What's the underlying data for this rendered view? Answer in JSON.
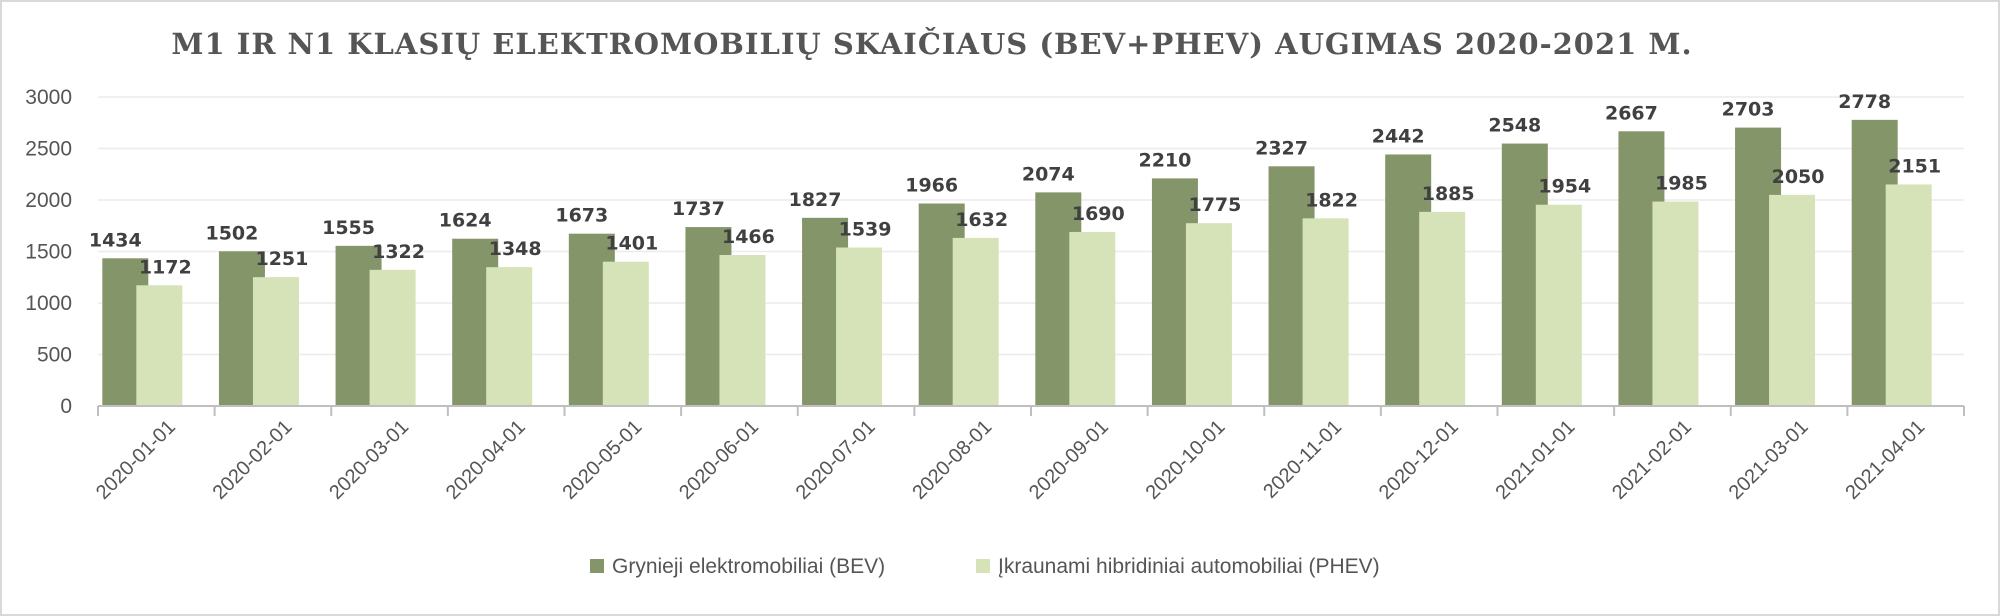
{
  "chart_data": {
    "type": "bar",
    "title": "M1 IR N1 KLASIŲ ELEKTROMOBILIŲ SKAIČIAUS (BEV+PHEV) AUGIMAS 2020-2021 M.",
    "xlabel": "",
    "ylabel": "",
    "ylim": [
      0,
      3000
    ],
    "yticks": [
      0,
      500,
      1000,
      1500,
      2000,
      2500,
      3000
    ],
    "grid": true,
    "legend": "bottom",
    "categories": [
      "2020-01-01",
      "2020-02-01",
      "2020-03-01",
      "2020-04-01",
      "2020-05-01",
      "2020-06-01",
      "2020-07-01",
      "2020-08-01",
      "2020-09-01",
      "2020-10-01",
      "2020-11-01",
      "2020-12-01",
      "2021-01-01",
      "2021-02-01",
      "2021-03-01",
      "2021-04-01"
    ],
    "series": [
      {
        "name": "Grynieji elektromobiliai (BEV)",
        "color": "#84956a",
        "values": [
          1434,
          1502,
          1555,
          1624,
          1673,
          1737,
          1827,
          1966,
          2074,
          2210,
          2327,
          2442,
          2548,
          2667,
          2703,
          2778
        ]
      },
      {
        "name": "Įkraunami hibridiniai automobiliai (PHEV)",
        "color": "#d6e2b8",
        "values": [
          1172,
          1251,
          1322,
          1348,
          1401,
          1466,
          1539,
          1632,
          1690,
          1775,
          1822,
          1885,
          1954,
          1985,
          2050,
          2151
        ]
      }
    ]
  }
}
